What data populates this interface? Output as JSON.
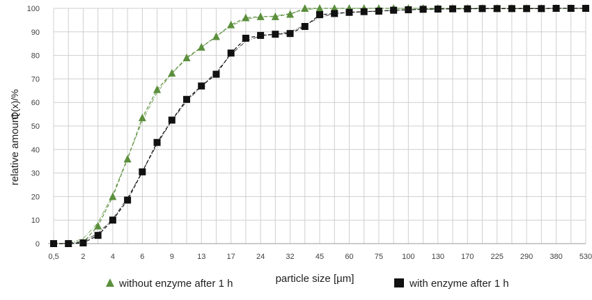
{
  "chart_data": {
    "type": "line",
    "title": "",
    "xlabel": "particle size [µm]",
    "ylabel": "relative amount",
    "ylabel2": "Q(x)/%",
    "ylim": [
      0,
      100
    ],
    "yticks": [
      0,
      10,
      20,
      30,
      40,
      50,
      60,
      70,
      80,
      90,
      100
    ],
    "grid": true,
    "legend_position": "bottom",
    "x_labels": [
      "0,5",
      "",
      "2",
      "",
      "4",
      "",
      "6",
      "",
      "9",
      "",
      "13",
      "",
      "17",
      "",
      "24",
      "",
      "32",
      "",
      "45",
      "",
      "60",
      "",
      "75",
      "",
      "100",
      "",
      "130",
      "",
      "170",
      "",
      "225",
      "",
      "290",
      "",
      "380",
      "",
      "530"
    ],
    "series": [
      {
        "name": "without enzyme after 1 h",
        "marker": "triangle",
        "color": "#5b8f3c",
        "values": [
          0,
          0,
          0.5,
          7.5,
          20,
          36,
          53.5,
          65.5,
          72.5,
          79,
          83.5,
          88,
          93,
          96,
          96.5,
          96.5,
          97.5,
          100,
          100,
          100,
          100,
          100,
          100,
          100,
          100,
          100,
          100,
          100,
          100,
          100,
          100,
          100,
          100,
          100,
          100,
          100,
          100
        ]
      },
      {
        "name": "with enzyme after 1 h",
        "marker": "square",
        "color": "#111111",
        "values": [
          0,
          0,
          0.3,
          3.5,
          10,
          18.5,
          30.5,
          43,
          52.5,
          61.3,
          67,
          72,
          81,
          87.3,
          88.5,
          89,
          89.3,
          92.3,
          97.3,
          97.8,
          98.3,
          98.6,
          98.8,
          99.2,
          99.4,
          99.6,
          99.7,
          99.8,
          99.8,
          99.9,
          99.9,
          99.9,
          99.9,
          99.9,
          100,
          100,
          100
        ]
      }
    ]
  }
}
